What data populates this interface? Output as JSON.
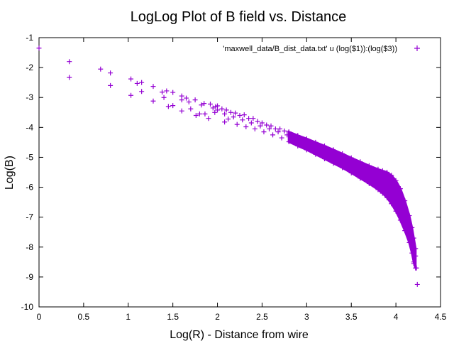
{
  "chart_data": {
    "type": "scatter",
    "title": "LogLog Plot of B field vs. Distance",
    "xlabel": "Log(R) - Distance from wire",
    "ylabel": "Log(B)",
    "xlim": [
      0,
      4.5
    ],
    "ylim": [
      -10,
      -1
    ],
    "x_ticks": [
      "0",
      "0.5",
      "1",
      "1.5",
      "2",
      "2.5",
      "3",
      "3.5",
      "4",
      "4.5"
    ],
    "y_ticks": [
      "-1",
      "-2",
      "-3",
      "-4",
      "-5",
      "-6",
      "-7",
      "-8",
      "-9",
      "-10"
    ],
    "grid": false,
    "legend_position": "top-right",
    "marker": "plus",
    "series": [
      {
        "name": "'maxwell_data/B_dist_data.txt' u (log($1)):(log($3))",
        "color": "#9400d3",
        "points": [
          [
            0.0,
            -1.35
          ],
          [
            0.34,
            -1.8
          ],
          [
            0.34,
            -2.33
          ],
          [
            0.69,
            -2.05
          ],
          [
            0.8,
            -2.18
          ],
          [
            0.8,
            -2.6
          ],
          [
            1.03,
            -2.38
          ],
          [
            1.03,
            -2.93
          ],
          [
            1.1,
            -2.53
          ],
          [
            1.15,
            -2.5
          ],
          [
            1.15,
            -2.8
          ],
          [
            1.28,
            -2.63
          ],
          [
            1.28,
            -3.12
          ],
          [
            1.38,
            -2.82
          ],
          [
            1.4,
            -3.0
          ],
          [
            1.43,
            -2.78
          ],
          [
            1.45,
            -3.3
          ],
          [
            1.5,
            -2.83
          ],
          [
            1.5,
            -3.27
          ],
          [
            1.6,
            -2.95
          ],
          [
            1.6,
            -3.08
          ],
          [
            1.6,
            -3.45
          ],
          [
            1.65,
            -3.02
          ],
          [
            1.68,
            -3.15
          ],
          [
            1.7,
            -3.38
          ],
          [
            1.75,
            -3.08
          ],
          [
            1.76,
            -3.6
          ],
          [
            1.8,
            -3.55
          ],
          [
            1.82,
            -3.25
          ],
          [
            1.85,
            -3.2
          ],
          [
            1.86,
            -3.55
          ],
          [
            1.9,
            -3.7
          ],
          [
            1.92,
            -3.22
          ],
          [
            1.95,
            -3.35
          ],
          [
            1.97,
            -3.5
          ],
          [
            1.98,
            -3.3
          ],
          [
            2.0,
            -3.28
          ],
          [
            2.0,
            -3.42
          ],
          [
            2.05,
            -3.38
          ],
          [
            2.08,
            -3.55
          ],
          [
            2.08,
            -3.82
          ],
          [
            2.1,
            -3.42
          ],
          [
            2.12,
            -3.72
          ],
          [
            2.15,
            -3.5
          ],
          [
            2.18,
            -3.65
          ],
          [
            2.2,
            -3.52
          ],
          [
            2.22,
            -3.9
          ],
          [
            2.25,
            -3.6
          ],
          [
            2.28,
            -3.75
          ],
          [
            2.3,
            -3.58
          ],
          [
            2.32,
            -3.98
          ],
          [
            2.35,
            -3.7
          ],
          [
            2.38,
            -3.85
          ],
          [
            2.4,
            -3.7
          ],
          [
            2.42,
            -4.05
          ],
          [
            2.45,
            -3.8
          ],
          [
            2.48,
            -3.95
          ],
          [
            2.5,
            -3.85
          ],
          [
            2.52,
            -4.15
          ],
          [
            2.55,
            -3.92
          ],
          [
            2.58,
            -4.05
          ],
          [
            2.6,
            -3.95
          ],
          [
            2.62,
            -4.25
          ],
          [
            2.65,
            -4.05
          ],
          [
            2.68,
            -4.15
          ],
          [
            2.7,
            -4.05
          ],
          [
            2.72,
            -4.35
          ],
          [
            2.75,
            -4.12
          ],
          [
            2.78,
            -4.25
          ]
        ],
        "band": {
          "x": [
            2.8,
            2.9,
            3.0,
            3.1,
            3.2,
            3.3,
            3.4,
            3.5,
            3.6,
            3.7,
            3.8,
            3.85,
            3.9,
            3.95,
            4.0,
            4.05,
            4.1,
            4.15,
            4.18,
            4.2,
            4.22
          ],
          "upper": [
            -4.15,
            -4.27,
            -4.38,
            -4.5,
            -4.62,
            -4.75,
            -4.88,
            -5.02,
            -5.15,
            -5.28,
            -5.4,
            -5.45,
            -5.5,
            -5.6,
            -5.78,
            -6.05,
            -6.45,
            -6.95,
            -7.35,
            -7.7,
            -8.05
          ],
          "lower": [
            -4.48,
            -4.62,
            -4.75,
            -4.9,
            -5.05,
            -5.2,
            -5.35,
            -5.52,
            -5.7,
            -5.88,
            -6.08,
            -6.2,
            -6.35,
            -6.55,
            -6.8,
            -7.1,
            -7.45,
            -7.85,
            -8.2,
            -8.5,
            -8.7
          ]
        },
        "tail": [
          [
            4.2,
            -8.55
          ],
          [
            4.22,
            -8.3
          ],
          [
            4.23,
            -8.7
          ],
          [
            4.24,
            -9.25
          ]
        ]
      }
    ]
  }
}
